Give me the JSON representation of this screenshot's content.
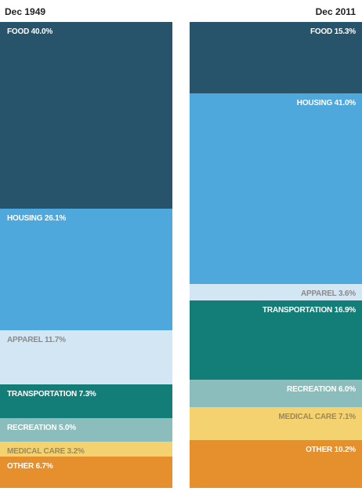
{
  "chart_data": {
    "type": "bar",
    "stacked": "100%",
    "categories": [
      "FOOD",
      "HOUSING",
      "APPAREL",
      "TRANSPORTATION",
      "RECREATION",
      "MEDICAL CARE",
      "OTHER"
    ],
    "series": [
      {
        "name": "Dec 1949",
        "values": [
          40.0,
          26.1,
          11.7,
          7.3,
          5.0,
          3.2,
          6.7
        ],
        "labels": [
          "FOOD 40.0%",
          "HOUSING 26.1%",
          "APPAREL 11.7%",
          "TRANSPORTATION 7.3%",
          "RECREATION 5.0%",
          "MEDICAL CARE 3.2%",
          "OTHER 6.7%"
        ]
      },
      {
        "name": "Dec 2011",
        "values": [
          15.3,
          41.0,
          3.6,
          16.9,
          6.0,
          7.1,
          10.2
        ],
        "labels": [
          "FOOD 15.3%",
          "HOUSING 41.0%",
          "APPAREL 3.6%",
          "TRANSPORTATION 16.9%",
          "RECREATION 6.0%",
          "MEDICAL CARE 7.1%",
          "OTHER 10.2%"
        ]
      }
    ],
    "colors": [
      "#27536b",
      "#4fa8dc",
      "#d3e6f3",
      "#137e78",
      "#8bbdbc",
      "#f3d26f",
      "#e58f2d"
    ],
    "label_colors": [
      "#ffffff",
      "#ffffff",
      "#8a8a8a",
      "#ffffff",
      "#ffffff",
      "#9a8a5a",
      "#ffffff"
    ]
  }
}
